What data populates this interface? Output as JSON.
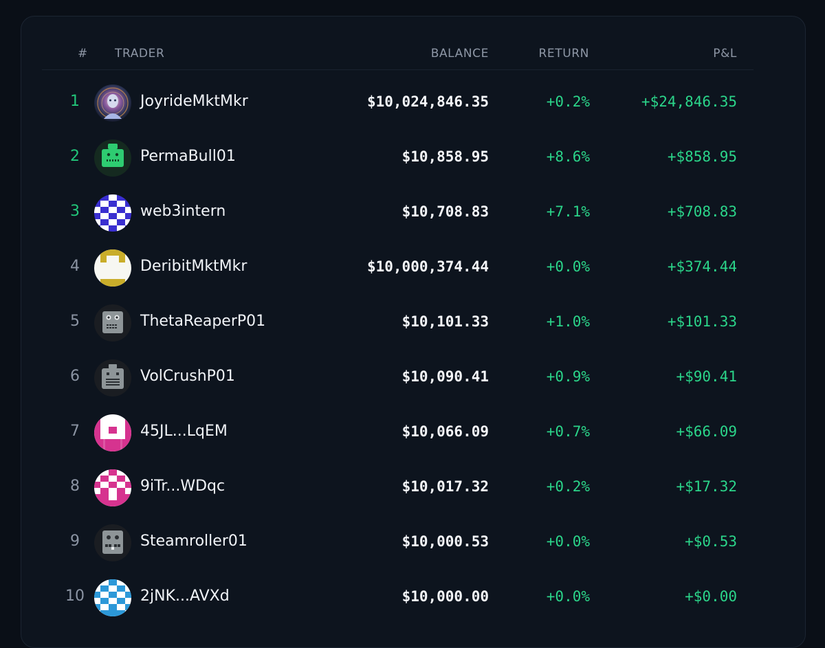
{
  "columns": {
    "rank": "#",
    "trader": "TRADER",
    "balance": "BALANCE",
    "return": "RETURN",
    "pl": "P&L"
  },
  "colors": {
    "accent_green": "#2bd58a",
    "background": "#0a0f17",
    "card": "#0d141e"
  },
  "rows": [
    {
      "rank": "1",
      "name": "JoyrideMktMkr",
      "balance": "$10,024,846.35",
      "return": "+0.2%",
      "pl": "+$24,846.35",
      "avatar": "cosmic-head-avatar"
    },
    {
      "rank": "2",
      "name": "PermaBull01",
      "balance": "$10,858.95",
      "return": "+8.6%",
      "pl": "+$858.95",
      "avatar": "green-robot-avatar"
    },
    {
      "rank": "3",
      "name": "web3intern",
      "balance": "$10,708.83",
      "return": "+7.1%",
      "pl": "+$708.83",
      "avatar": "blue-pixel-avatar"
    },
    {
      "rank": "4",
      "name": "DeribitMktMkr",
      "balance": "$10,000,374.44",
      "return": "+0.0%",
      "pl": "+$374.44",
      "avatar": "yellow-pixel-avatar"
    },
    {
      "rank": "5",
      "name": "ThetaReaperP01",
      "balance": "$10,101.33",
      "return": "+1.0%",
      "pl": "+$101.33",
      "avatar": "gray-robot-avatar"
    },
    {
      "rank": "6",
      "name": "VolCrushP01",
      "balance": "$10,090.41",
      "return": "+0.9%",
      "pl": "+$90.41",
      "avatar": "gray-robot-avatar"
    },
    {
      "rank": "7",
      "name": "45JL...LqEM",
      "balance": "$10,066.09",
      "return": "+0.7%",
      "pl": "+$66.09",
      "avatar": "pink-pixel-avatar"
    },
    {
      "rank": "8",
      "name": "9iTr...WDqc",
      "balance": "$10,017.32",
      "return": "+0.2%",
      "pl": "+$17.32",
      "avatar": "pink-pixel-avatar"
    },
    {
      "rank": "9",
      "name": "Steamroller01",
      "balance": "$10,000.53",
      "return": "+0.0%",
      "pl": "+$0.53",
      "avatar": "gray-robot-avatar"
    },
    {
      "rank": "10",
      "name": "2jNK...AVXd",
      "balance": "$10,000.00",
      "return": "+0.0%",
      "pl": "+$0.00",
      "avatar": "cyan-pixel-avatar"
    }
  ]
}
